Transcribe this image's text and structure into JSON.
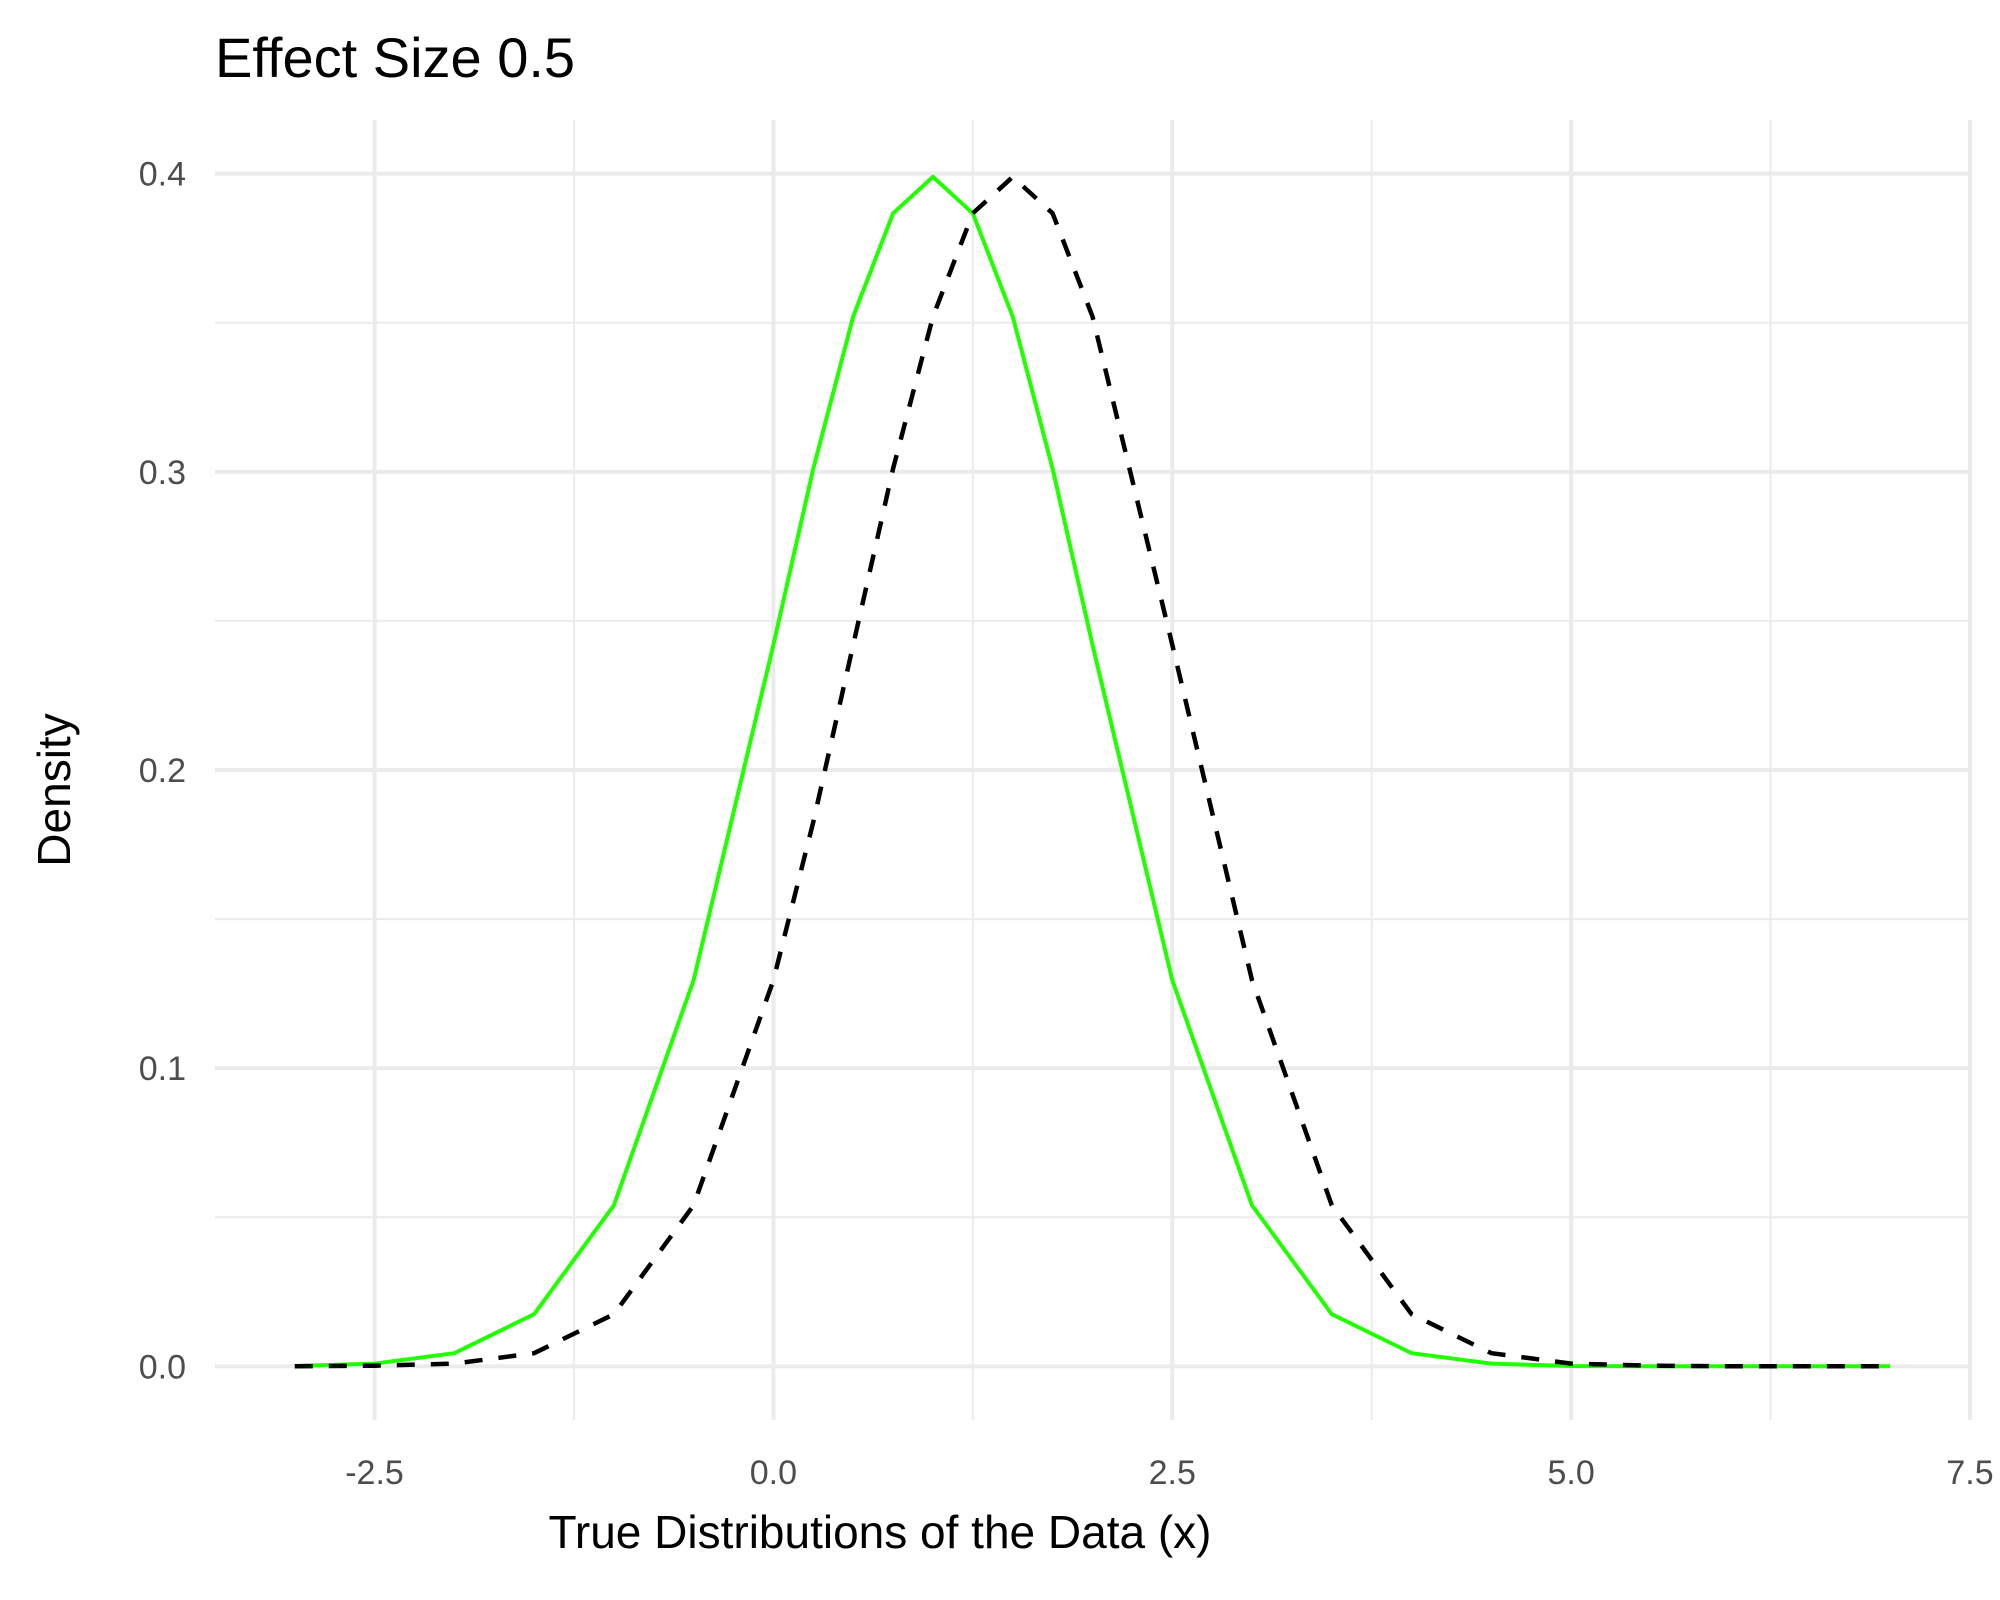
{
  "chart_data": {
    "type": "line",
    "title": "Effect Size 0.5",
    "xlabel": "True Distributions of the Data (x)",
    "ylabel": "Density",
    "xlim": [
      -3.5,
      7.5
    ],
    "ylim": [
      -0.018,
      0.418
    ],
    "x_ticks": [
      -2.5,
      0.0,
      2.5,
      5.0,
      7.5
    ],
    "x_tick_labels": [
      "-2.5",
      "0.0",
      "2.5",
      "5.0",
      "7.5"
    ],
    "x_minor_ticks": [
      -1.25,
      1.25,
      3.75,
      6.25
    ],
    "y_ticks": [
      0.0,
      0.1,
      0.2,
      0.3,
      0.4
    ],
    "y_tick_labels": [
      "0.0",
      "0.1",
      "0.2",
      "0.3",
      "0.4"
    ],
    "y_minor_ticks": [
      0.05,
      0.15,
      0.25,
      0.35
    ],
    "grid": true,
    "legend": "none",
    "x": [
      -3.0,
      -2.5,
      -2.0,
      -1.5,
      -1.0,
      -0.5,
      0.0,
      0.25,
      0.5,
      0.75,
      1.0,
      1.25,
      1.5,
      1.75,
      2.0,
      2.5,
      3.0,
      3.5,
      4.0,
      4.5,
      5.0,
      5.5,
      6.0,
      6.5,
      7.0
    ],
    "series": [
      {
        "style": "solid",
        "color": "#22ff00",
        "values": [
          0.0001,
          0.0009,
          0.0044,
          0.0175,
          0.054,
          0.1295,
          0.242,
          0.3011,
          0.3521,
          0.3867,
          0.3989,
          0.3867,
          0.3521,
          0.3011,
          0.242,
          0.1295,
          0.054,
          0.0175,
          0.0044,
          0.0009,
          0.0001,
          0.0,
          0.0,
          0.0,
          0.0
        ]
      },
      {
        "style": "dashed",
        "color": "#000000",
        "values": [
          0.0,
          0.0002,
          0.0009,
          0.0044,
          0.0175,
          0.054,
          0.1295,
          0.1826,
          0.242,
          0.3011,
          0.3521,
          0.3867,
          0.3989,
          0.3867,
          0.3521,
          0.242,
          0.1295,
          0.054,
          0.0175,
          0.0044,
          0.0009,
          0.0002,
          0.0,
          0.0,
          0.0
        ]
      }
    ]
  }
}
